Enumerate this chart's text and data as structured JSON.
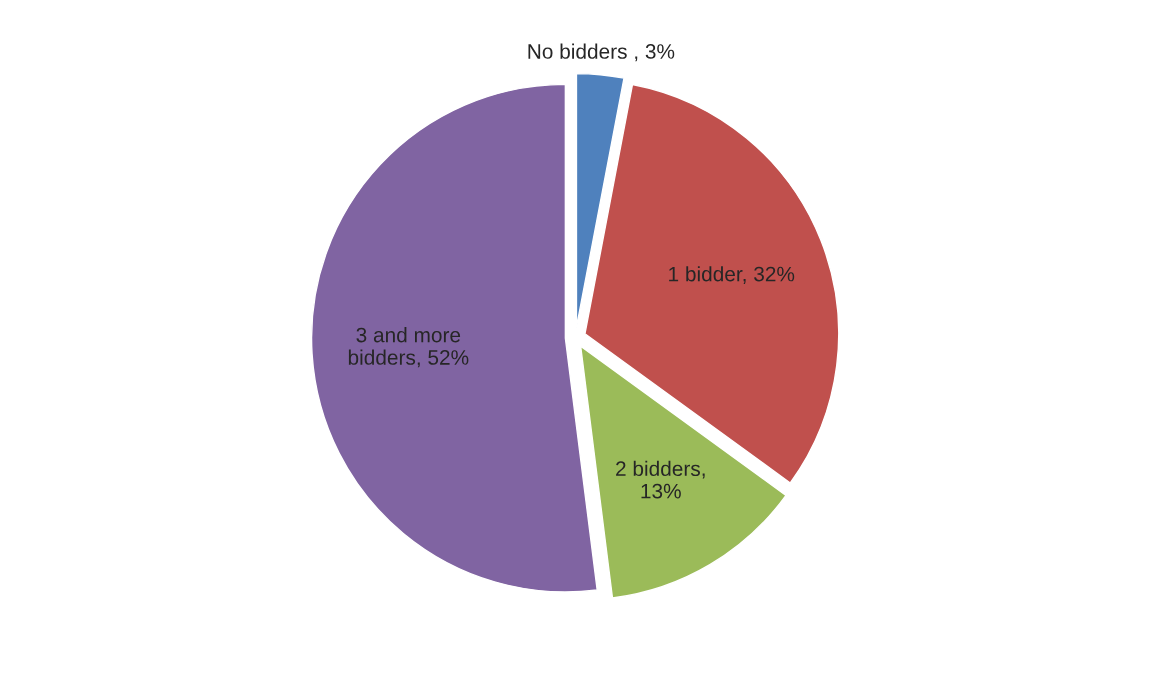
{
  "chart_data": {
    "type": "pie",
    "categories": [
      "No bidders , 3%",
      "1 bidder, 32%",
      "2 bidders, 13%",
      "3 and more bidders, 52%"
    ],
    "values": [
      3,
      32,
      13,
      52
    ],
    "colors": [
      "#4f81bd",
      "#c0504d",
      "#9bbb59",
      "#8064a2"
    ],
    "legend": false
  }
}
